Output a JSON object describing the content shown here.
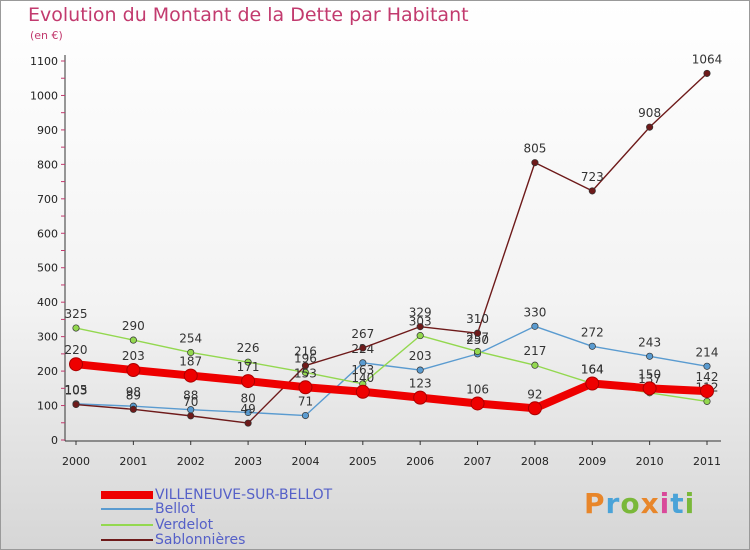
{
  "title": "Evolution du Montant de la Dette par Habitant",
  "unit_label": "(en €)",
  "logo": {
    "text": "Proxiti",
    "colors": [
      "#e8862a",
      "#4aa3d8",
      "#7ab83a",
      "#e8862a",
      "#d94a9a",
      "#4aa3d8",
      "#7ab83a"
    ]
  },
  "chart_data": {
    "type": "line",
    "categories": [
      "2000",
      "2001",
      "2002",
      "2003",
      "2004",
      "2005",
      "2006",
      "2007",
      "2008",
      "2009",
      "2010",
      "2011"
    ],
    "ylim": [
      0,
      1100
    ],
    "yticks": [
      0,
      100,
      200,
      300,
      400,
      500,
      600,
      700,
      800,
      900,
      1000,
      1100
    ],
    "grid": false,
    "legend_position": "bottom-left",
    "series": [
      {
        "name": "VILLENEUVE-SUR-BELLOT",
        "color": "#ee0000",
        "values": [
          220,
          203,
          187,
          171,
          153,
          140,
          123,
          106,
          92,
          164,
          150,
          142
        ]
      },
      {
        "name": "Bellot",
        "color": "#5a9bd0",
        "values": [
          105,
          98,
          88,
          80,
          71,
          224,
          203,
          250,
          330,
          272,
          243,
          214
        ]
      },
      {
        "name": "Verdelot",
        "color": "#93d84f",
        "values": [
          325,
          290,
          254,
          226,
          196,
          163,
          303,
          257,
          217,
          164,
          137,
          112
        ]
      },
      {
        "name": "Sablonnières",
        "color": "#6e1a1a",
        "values": [
          103,
          89,
          70,
          49,
          216,
          267,
          329,
          310,
          805,
          723,
          908,
          1064
        ]
      }
    ]
  }
}
